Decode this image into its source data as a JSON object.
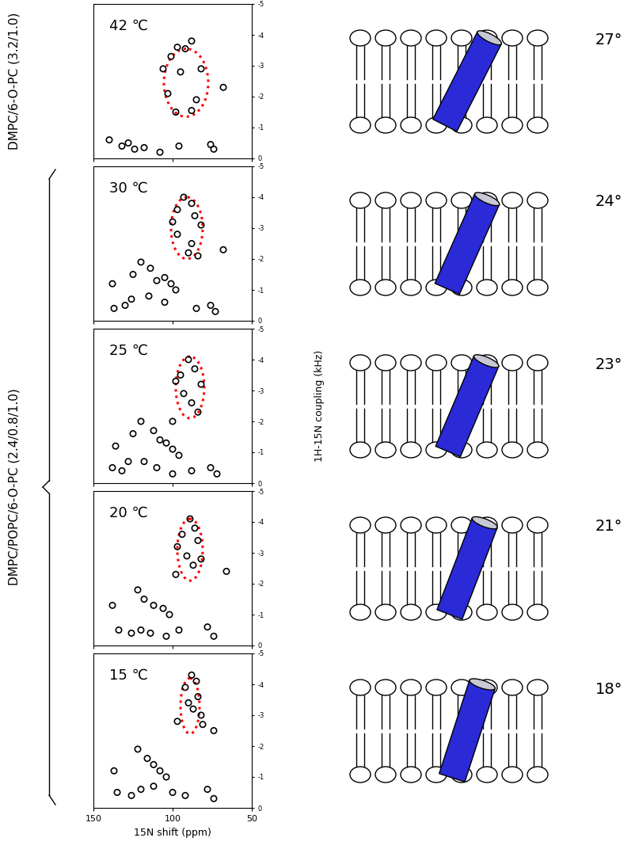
{
  "chart_data": [
    {
      "type": "scatter",
      "title": "42 ℃",
      "marker": "o",
      "color": "black",
      "x": [
        88,
        97,
        92,
        101,
        106,
        95,
        82,
        103,
        85,
        98,
        88,
        68,
        140,
        132,
        128,
        124,
        118,
        108,
        96,
        76,
        74
      ],
      "values": [
        -3.8,
        -3.6,
        -3.55,
        -3.3,
        -2.9,
        -2.8,
        -2.9,
        -2.1,
        -1.9,
        -1.5,
        -1.55,
        -2.3,
        -0.6,
        -0.4,
        -0.5,
        -0.3,
        -0.35,
        -0.2,
        -0.4,
        -0.45,
        -0.3
      ],
      "wheel": {
        "center_x": 91.5,
        "center_y": -2.45,
        "width": 28,
        "height": 2.2,
        "color": "red",
        "line_style": "dotted"
      },
      "xlim": [
        150,
        50
      ],
      "xticks": [
        150,
        100,
        50
      ],
      "ylim": [
        0,
        -5
      ],
      "yticks": [
        0,
        -1,
        -2,
        -3,
        -4,
        -5
      ],
      "tick_labels": "y",
      "tilt_angle": 27,
      "tilt_label": "27°"
    },
    {
      "type": "scatter",
      "title": "30 ℃",
      "marker": "o",
      "color": "black",
      "x": [
        93,
        88,
        97,
        86,
        100,
        82,
        97,
        88,
        90,
        84,
        68,
        120,
        125,
        114,
        110,
        105,
        101,
        98,
        138,
        137,
        130,
        126,
        115,
        105,
        85,
        76,
        73
      ],
      "values": [
        -4.0,
        -3.8,
        -3.6,
        -3.4,
        -3.2,
        -3.1,
        -2.8,
        -2.5,
        -2.2,
        -2.1,
        -2.3,
        -1.9,
        -1.5,
        -1.7,
        -1.3,
        -1.4,
        -1.2,
        -1.0,
        -1.2,
        -0.4,
        -0.5,
        -0.7,
        -0.8,
        -0.6,
        -0.4,
        -0.5,
        -0.3
      ],
      "wheel": {
        "center_x": 91,
        "center_y": -3.0,
        "width": 20,
        "height": 2.0,
        "color": "red",
        "line_style": "dotted"
      },
      "xlim": [
        150,
        50
      ],
      "xticks": [
        150,
        100,
        50
      ],
      "ylim": [
        0,
        -5
      ],
      "yticks": [
        0,
        -1,
        -2,
        -3,
        -4,
        -5
      ],
      "tick_labels": "y",
      "tilt_angle": 24,
      "tilt_label": "24°"
    },
    {
      "type": "scatter",
      "title": "25 ℃",
      "marker": "o",
      "color": "black",
      "x": [
        90,
        86,
        95,
        98,
        82,
        93,
        88,
        84,
        100,
        120,
        125,
        112,
        108,
        104,
        100,
        96,
        136,
        138,
        132,
        128,
        118,
        110,
        100,
        88,
        76,
        72
      ],
      "values": [
        -4.0,
        -3.7,
        -3.5,
        -3.3,
        -3.2,
        -2.9,
        -2.6,
        -2.3,
        -2.0,
        -2.0,
        -1.6,
        -1.7,
        -1.4,
        -1.3,
        -1.1,
        -0.9,
        -1.2,
        -0.5,
        -0.4,
        -0.7,
        -0.7,
        -0.5,
        -0.3,
        -0.4,
        -0.5,
        -0.3
      ],
      "wheel": {
        "center_x": 89,
        "center_y": -3.1,
        "width": 18,
        "height": 2.0,
        "color": "red",
        "line_style": "dotted"
      },
      "xlim": [
        150,
        50
      ],
      "xticks": [
        150,
        100,
        50
      ],
      "ylim": [
        0,
        -5
      ],
      "yticks": [
        0,
        -1,
        -2,
        -3,
        -4,
        -5
      ],
      "tick_labels": "y",
      "y_label": "1H-15N coupling (kHz)",
      "tilt_angle": 23,
      "tilt_label": "23°"
    },
    {
      "type": "scatter",
      "title": "20 ℃",
      "marker": "o",
      "color": "black",
      "x": [
        89,
        86,
        94,
        84,
        97,
        91,
        87,
        82,
        98,
        66,
        122,
        118,
        112,
        106,
        102,
        138,
        134,
        126,
        120,
        114,
        104,
        96,
        78,
        74
      ],
      "values": [
        -4.1,
        -3.8,
        -3.6,
        -3.4,
        -3.2,
        -2.9,
        -2.6,
        -2.8,
        -2.3,
        -2.4,
        -1.8,
        -1.5,
        -1.3,
        -1.2,
        -1.0,
        -1.3,
        -0.5,
        -0.4,
        -0.5,
        -0.4,
        -0.3,
        -0.5,
        -0.6,
        -0.3
      ],
      "wheel": {
        "center_x": 89,
        "center_y": -3.1,
        "width": 16,
        "height": 2.0,
        "color": "red",
        "line_style": "dotted"
      },
      "xlim": [
        150,
        50
      ],
      "xticks": [
        150,
        100,
        50
      ],
      "ylim": [
        0,
        -5
      ],
      "yticks": [
        0,
        -1,
        -2,
        -3,
        -4,
        -5
      ],
      "tick_labels": "y",
      "tilt_angle": 21,
      "tilt_label": "21°"
    },
    {
      "type": "scatter",
      "title": "15 ℃",
      "marker": "o",
      "color": "black",
      "x": [
        88,
        85,
        92,
        84,
        90,
        87,
        82,
        81,
        97,
        74,
        122,
        116,
        112,
        108,
        104,
        137,
        135,
        126,
        120,
        112,
        100,
        92,
        78,
        74
      ],
      "values": [
        -4.3,
        -4.1,
        -3.9,
        -3.6,
        -3.4,
        -3.2,
        -3.0,
        -2.7,
        -2.8,
        -2.5,
        -1.9,
        -1.6,
        -1.4,
        -1.2,
        -1.0,
        -1.2,
        -0.5,
        -0.4,
        -0.6,
        -0.7,
        -0.5,
        -0.4,
        -0.6,
        -0.3
      ],
      "wheel": {
        "center_x": 89,
        "center_y": -3.3,
        "width": 12,
        "height": 1.8,
        "color": "red",
        "line_style": "dotted"
      },
      "xlim": [
        150,
        50
      ],
      "xticks": [
        150,
        100,
        50
      ],
      "ylim": [
        0,
        -5
      ],
      "yticks": [
        0,
        -1,
        -2,
        -3,
        -4,
        -5
      ],
      "x_label": "15N shift (ppm)",
      "tilt_angle": 18,
      "tilt_label": "18°"
    }
  ],
  "sample_labels": [
    {
      "text": "DMPC/6-O-PC (3.2/1.0)",
      "panels": [
        0,
        0
      ]
    },
    {
      "text": "DMPC/POPC/6-O-PC (2.4/0.8/1.0)",
      "panels": [
        1,
        4
      ]
    }
  ]
}
